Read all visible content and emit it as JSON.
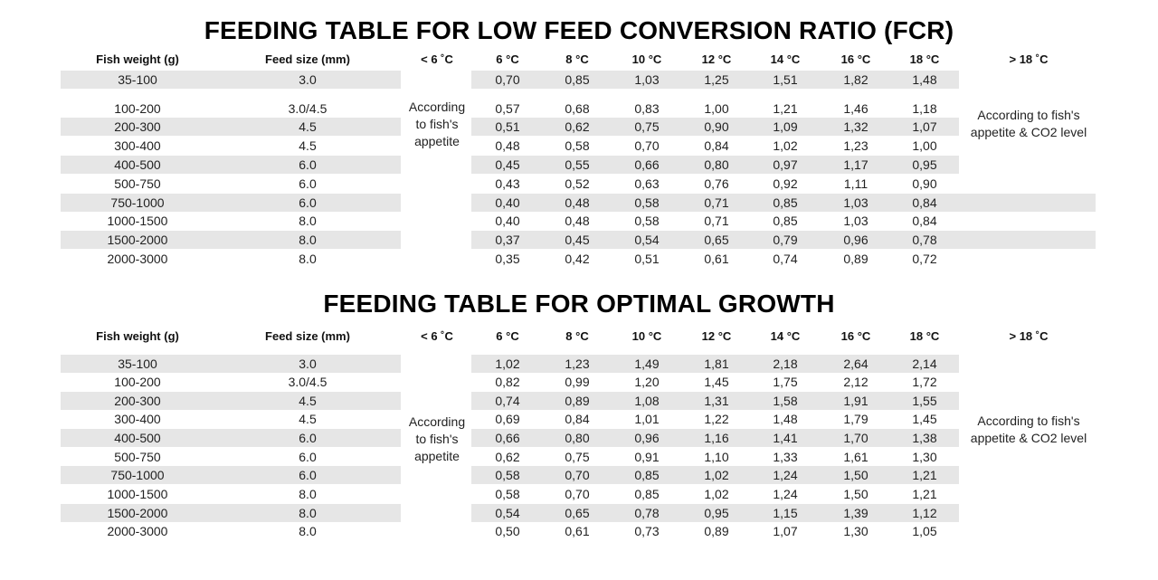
{
  "tables": [
    {
      "title": "FEEDING TABLE FOR LOW FEED CONVERSION RATIO (FCR)",
      "headers": [
        "Fish weight (g)",
        "Feed size (mm)",
        "< 6 ˚C",
        "6 °C",
        "8 °C",
        "10 °C",
        "12 °C",
        "14 °C",
        "16 °C",
        "18 °C",
        "> 18 ˚C"
      ],
      "low_note": "According\nto fish's\nappetite",
      "high_note": "According to fish's\nappetite & CO2 level",
      "rows": [
        {
          "weight": "35-100",
          "feed": "3.0",
          "values": [
            "0,70",
            "0,85",
            "1,03",
            "1,25",
            "1,51",
            "1,82",
            "1,48"
          ]
        },
        {
          "weight": "100-200",
          "feed": "3.0/4.5",
          "values": [
            "0,57",
            "0,68",
            "0,83",
            "1,00",
            "1,21",
            "1,46",
            "1,18"
          ]
        },
        {
          "weight": "200-300",
          "feed": "4.5",
          "values": [
            "0,51",
            "0,62",
            "0,75",
            "0,90",
            "1,09",
            "1,32",
            "1,07"
          ]
        },
        {
          "weight": "300-400",
          "feed": "4.5",
          "values": [
            "0,48",
            "0,58",
            "0,70",
            "0,84",
            "1,02",
            "1,23",
            "1,00"
          ]
        },
        {
          "weight": "400-500",
          "feed": "6.0",
          "values": [
            "0,45",
            "0,55",
            "0,66",
            "0,80",
            "0,97",
            "1,17",
            "0,95"
          ]
        },
        {
          "weight": "500-750",
          "feed": "6.0",
          "values": [
            "0,43",
            "0,52",
            "0,63",
            "0,76",
            "0,92",
            "1,11",
            "0,90"
          ]
        },
        {
          "weight": "750-1000",
          "feed": "6.0",
          "values": [
            "0,40",
            "0,48",
            "0,58",
            "0,71",
            "0,85",
            "1,03",
            "0,84"
          ]
        },
        {
          "weight": "1000-1500",
          "feed": "8.0",
          "values": [
            "0,40",
            "0,48",
            "0,58",
            "0,71",
            "0,85",
            "1,03",
            "0,84"
          ]
        },
        {
          "weight": "1500-2000",
          "feed": "8.0",
          "values": [
            "0,37",
            "0,45",
            "0,54",
            "0,65",
            "0,79",
            "0,96",
            "0,78"
          ]
        },
        {
          "weight": "2000-3000",
          "feed": "8.0",
          "values": [
            "0,35",
            "0,42",
            "0,51",
            "0,61",
            "0,74",
            "0,89",
            "0,72"
          ]
        }
      ]
    },
    {
      "title": "FEEDING TABLE FOR OPTIMAL GROWTH",
      "headers": [
        "Fish weight (g)",
        "Feed size (mm)",
        "< 6 ˚C",
        "6 °C",
        "8 °C",
        "10 °C",
        "12 °C",
        "14 °C",
        "16 °C",
        "18 °C",
        "> 18 ˚C"
      ],
      "low_note": "According\nto fish's\nappetite",
      "high_note": "According to fish's\nappetite & CO2 level",
      "rows": [
        {
          "weight": "35-100",
          "feed": "3.0",
          "values": [
            "1,02",
            "1,23",
            "1,49",
            "1,81",
            "2,18",
            "2,64",
            "2,14"
          ]
        },
        {
          "weight": "100-200",
          "feed": "3.0/4.5",
          "values": [
            "0,82",
            "0,99",
            "1,20",
            "1,45",
            "1,75",
            "2,12",
            "1,72"
          ]
        },
        {
          "weight": "200-300",
          "feed": "4.5",
          "values": [
            "0,74",
            "0,89",
            "1,08",
            "1,31",
            "1,58",
            "1,91",
            "1,55"
          ]
        },
        {
          "weight": "300-400",
          "feed": "4.5",
          "values": [
            "0,69",
            "0,84",
            "1,01",
            "1,22",
            "1,48",
            "1,79",
            "1,45"
          ]
        },
        {
          "weight": "400-500",
          "feed": "6.0",
          "values": [
            "0,66",
            "0,80",
            "0,96",
            "1,16",
            "1,41",
            "1,70",
            "1,38"
          ]
        },
        {
          "weight": "500-750",
          "feed": "6.0",
          "values": [
            "0,62",
            "0,75",
            "0,91",
            "1,10",
            "1,33",
            "1,61",
            "1,30"
          ]
        },
        {
          "weight": "750-1000",
          "feed": "6.0",
          "values": [
            "0,58",
            "0,70",
            "0,85",
            "1,02",
            "1,24",
            "1,50",
            "1,21"
          ]
        },
        {
          "weight": "1000-1500",
          "feed": "8.0",
          "values": [
            "0,58",
            "0,70",
            "0,85",
            "1,02",
            "1,24",
            "1,50",
            "1,21"
          ]
        },
        {
          "weight": "1500-2000",
          "feed": "8.0",
          "values": [
            "0,54",
            "0,65",
            "0,78",
            "0,95",
            "1,15",
            "1,39",
            "1,12"
          ]
        },
        {
          "weight": "2000-3000",
          "feed": "8.0",
          "values": [
            "0,50",
            "0,61",
            "0,73",
            "0,89",
            "1,07",
            "1,30",
            "1,05"
          ]
        }
      ]
    }
  ]
}
